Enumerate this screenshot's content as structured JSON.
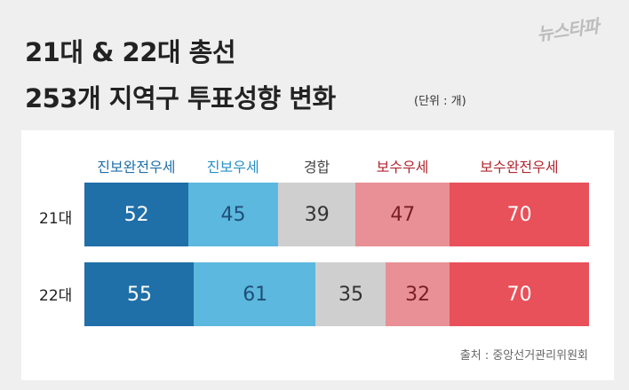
{
  "title_line1": "21대 & 22대 총선",
  "title_line2": "253개 지역구 투표성향 변화",
  "unit": "(단위 : 개)",
  "logo": "뉴스타파",
  "source": "출처 : 중앙선거관리위원회",
  "categories": [
    "진보완전우세",
    "진보우세",
    "경합",
    "보수우세",
    "보수완전우세"
  ],
  "category_colors": [
    "#1f6fa8",
    "#5cb8de",
    "#cfcfcf",
    "#e89096",
    "#e8505a"
  ],
  "legend_text_colors": [
    "#1f6fa8",
    "#2a8fc4",
    "#444444",
    "#b0262f",
    "#b0262f"
  ],
  "value_text_colors": [
    "#ffffff",
    "#1f4e79",
    "#333333",
    "#7a1e24",
    "#ffffff"
  ],
  "chart_data": {
    "type": "bar",
    "stacked": true,
    "orientation": "horizontal",
    "categories": [
      "21대",
      "22대"
    ],
    "series": [
      {
        "name": "진보완전우세",
        "values": [
          52,
          55
        ]
      },
      {
        "name": "진보우세",
        "values": [
          45,
          61
        ]
      },
      {
        "name": "경합",
        "values": [
          39,
          35
        ]
      },
      {
        "name": "보수우세",
        "values": [
          47,
          32
        ]
      },
      {
        "name": "보수완전우세",
        "values": [
          70,
          70
        ]
      }
    ],
    "total": 253
  }
}
